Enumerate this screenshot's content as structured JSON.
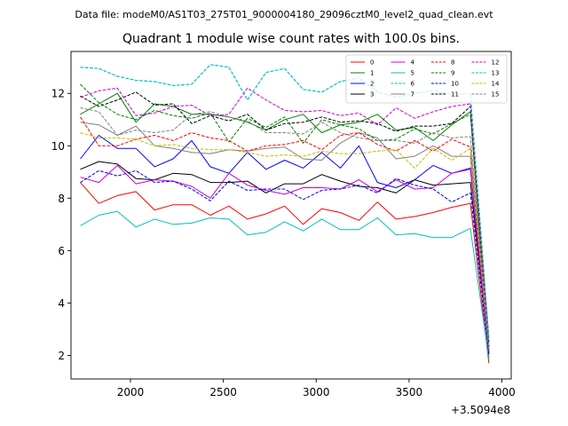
{
  "supertitle": "Data file: modeM0/AS1T03_275T01_9000004180_29096cztM0_level2_quad_clean.evt",
  "chart_data": {
    "type": "line",
    "title": "Quadrant 1 module wise count rates with 100.0s bins.",
    "xlabel": "",
    "ylabel": "",
    "x_offset_label": "+3.5094e8",
    "xlim": [
      1680,
      4050
    ],
    "ylim": [
      1.1,
      13.6
    ],
    "xticks": [
      2000,
      2500,
      3000,
      3500,
      4000
    ],
    "yticks": [
      2,
      4,
      6,
      8,
      10,
      12
    ],
    "grid": false,
    "legend_position": "top-right",
    "legend_columns": 4,
    "x": [
      1730,
      1830,
      1930,
      2030,
      2130,
      2230,
      2330,
      2430,
      2530,
      2630,
      2730,
      2830,
      2930,
      3030,
      3130,
      3230,
      3330,
      3430,
      3530,
      3630,
      3730,
      3830,
      3930
    ],
    "series": [
      {
        "name": "0",
        "color": "#ff0000",
        "dash": "solid",
        "values": [
          8.6,
          7.8,
          8.1,
          8.25,
          7.55,
          7.75,
          7.75,
          7.35,
          7.7,
          7.2,
          7.4,
          7.7,
          7.0,
          7.6,
          7.45,
          7.15,
          7.85,
          7.2,
          7.3,
          7.45,
          7.65,
          7.8,
          1.7
        ]
      },
      {
        "name": "1",
        "color": "#008000",
        "dash": "solid",
        "values": [
          11.2,
          11.6,
          12.0,
          10.9,
          11.6,
          11.5,
          11.2,
          11.2,
          11.1,
          10.9,
          10.6,
          11.0,
          11.2,
          10.5,
          10.8,
          10.9,
          11.2,
          10.6,
          10.7,
          10.2,
          10.8,
          11.3,
          1.9
        ]
      },
      {
        "name": "2",
        "color": "#0000ff",
        "dash": "solid",
        "values": [
          9.5,
          10.4,
          9.9,
          9.9,
          9.2,
          9.5,
          10.2,
          9.2,
          8.95,
          9.75,
          9.1,
          9.45,
          9.15,
          9.75,
          9.15,
          10.0,
          8.6,
          8.4,
          8.7,
          9.25,
          8.95,
          9.15,
          2.05
        ]
      },
      {
        "name": "3",
        "color": "#000000",
        "dash": "solid",
        "values": [
          9.1,
          9.4,
          9.3,
          8.75,
          8.7,
          8.95,
          8.9,
          8.6,
          8.6,
          8.65,
          8.2,
          8.55,
          8.55,
          8.9,
          8.65,
          8.45,
          8.4,
          8.2,
          8.7,
          8.5,
          8.55,
          8.6,
          2.2
        ]
      },
      {
        "name": "4",
        "color": "#cc00cc",
        "dash": "solid",
        "values": [
          8.8,
          8.6,
          9.25,
          8.55,
          8.7,
          8.65,
          8.45,
          8.0,
          8.95,
          8.5,
          8.3,
          8.15,
          8.4,
          8.4,
          8.35,
          8.7,
          8.25,
          8.7,
          8.35,
          8.4,
          8.95,
          9.1,
          2.1
        ]
      },
      {
        "name": "5",
        "color": "#00bfbf",
        "dash": "solid",
        "values": [
          6.95,
          7.35,
          7.5,
          6.9,
          7.2,
          7.0,
          7.05,
          7.25,
          7.2,
          6.6,
          6.7,
          7.1,
          6.75,
          7.2,
          6.8,
          6.8,
          7.25,
          6.6,
          6.65,
          6.5,
          6.5,
          6.85,
          1.85
        ]
      },
      {
        "name": "6",
        "color": "#00bfbf",
        "dash": "dashed",
        "values": [
          13.0,
          12.95,
          12.65,
          12.5,
          12.45,
          12.3,
          12.35,
          13.1,
          13.0,
          11.75,
          12.8,
          12.95,
          12.15,
          12.05,
          12.45,
          12.6,
          12.05,
          11.85,
          12.0,
          12.1,
          11.95,
          12.0,
          2.6
        ]
      },
      {
        "name": "7",
        "color": "#808080",
        "dash": "solid",
        "values": [
          10.9,
          10.8,
          10.4,
          10.75,
          10.0,
          9.9,
          9.75,
          9.7,
          9.85,
          9.8,
          9.9,
          9.95,
          9.5,
          9.45,
          10.1,
          10.5,
          10.3,
          9.5,
          9.6,
          10.0,
          9.6,
          9.6,
          2.3
        ]
      },
      {
        "name": "8",
        "color": "#ff0000",
        "dash": "dashed",
        "values": [
          11.1,
          10.0,
          10.0,
          10.25,
          10.4,
          10.2,
          10.5,
          10.3,
          10.2,
          9.8,
          10.0,
          10.05,
          10.2,
          9.85,
          10.4,
          10.5,
          10.05,
          9.8,
          10.2,
          9.8,
          10.25,
          9.95,
          2.3
        ]
      },
      {
        "name": "9",
        "color": "#008000",
        "dash": "dashed",
        "values": [
          12.35,
          11.65,
          11.2,
          11.0,
          11.35,
          11.15,
          11.05,
          11.25,
          10.15,
          11.05,
          10.7,
          11.1,
          10.1,
          11.0,
          10.8,
          10.65,
          10.2,
          10.25,
          10.65,
          10.45,
          10.85,
          11.2,
          2.3
        ]
      },
      {
        "name": "10",
        "color": "#0000ff",
        "dash": "dashed",
        "values": [
          8.6,
          9.05,
          8.85,
          9.05,
          8.6,
          8.65,
          8.35,
          7.9,
          8.65,
          8.3,
          8.35,
          8.35,
          7.95,
          8.3,
          8.35,
          8.5,
          8.2,
          8.75,
          8.5,
          8.35,
          7.85,
          8.2,
          2.0
        ]
      },
      {
        "name": "11",
        "color": "#000000",
        "dash": "dashed",
        "values": [
          11.9,
          11.5,
          11.75,
          12.05,
          11.55,
          11.6,
          10.85,
          11.15,
          10.95,
          11.2,
          10.6,
          10.85,
          10.9,
          11.1,
          10.9,
          10.95,
          10.85,
          10.55,
          10.75,
          10.75,
          10.85,
          11.5,
          2.5
        ]
      },
      {
        "name": "12",
        "color": "#cc00cc",
        "dash": "dashed",
        "values": [
          11.85,
          12.1,
          12.2,
          11.15,
          11.25,
          11.5,
          11.55,
          11.15,
          11.2,
          12.2,
          11.75,
          11.35,
          11.3,
          11.35,
          11.15,
          11.25,
          10.8,
          11.45,
          11.05,
          11.3,
          11.5,
          11.6,
          2.6
        ]
      },
      {
        "name": "13",
        "color": "#00bfbf",
        "dash": "dashed",
        "values": [
          13.0,
          12.95,
          12.65,
          12.5,
          12.45,
          12.3,
          12.35,
          13.1,
          13.0,
          11.75,
          12.8,
          12.95,
          12.15,
          12.05,
          12.45,
          12.6,
          12.05,
          11.85,
          12.0,
          12.1,
          11.95,
          12.0,
          2.7
        ]
      },
      {
        "name": "14",
        "color": "#bfbf00",
        "dash": "dashed",
        "values": [
          10.5,
          10.3,
          10.3,
          10.25,
          10.0,
          10.05,
          9.9,
          9.85,
          9.85,
          9.75,
          9.6,
          9.65,
          9.6,
          9.8,
          9.7,
          9.7,
          9.8,
          9.85,
          9.15,
          9.9,
          9.45,
          9.9,
          2.25
        ]
      },
      {
        "name": "15",
        "color": "#808080",
        "dash": "dashed",
        "values": [
          11.45,
          11.3,
          10.4,
          10.6,
          10.5,
          10.6,
          11.2,
          11.3,
          11.1,
          10.95,
          10.5,
          10.5,
          10.45,
          10.9,
          10.5,
          10.3,
          10.2,
          10.2,
          10.1,
          10.5,
          10.3,
          10.35,
          2.4
        ]
      }
    ]
  }
}
